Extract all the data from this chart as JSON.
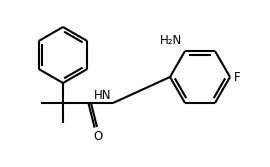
{
  "background": "#ffffff",
  "line_color": "#000000",
  "line_width": 1.5,
  "text_color": "#000000",
  "font_size": 8.5,
  "figsize": [
    2.7,
    1.67
  ],
  "dpi": 100,
  "labels": {
    "HN": "HN",
    "O": "O",
    "NH2": "H₂N",
    "F": "F"
  }
}
